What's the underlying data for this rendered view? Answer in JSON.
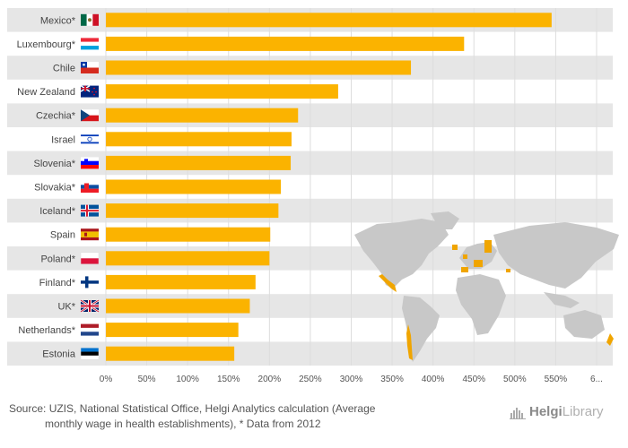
{
  "chart_data": {
    "type": "bar",
    "orientation": "horizontal",
    "categories": [
      "Mexico*",
      "Luxembourg*",
      "Chile",
      "New Zealand",
      "Czechia*",
      "Israel",
      "Slovenia*",
      "Slovakia*",
      "Iceland*",
      "Spain",
      "Poland*",
      "Finland*",
      "UK*",
      "Netherlands*",
      "Estonia"
    ],
    "values": [
      545,
      438,
      373,
      284,
      235,
      227,
      226,
      214,
      211,
      201,
      200,
      183,
      176,
      162,
      157
    ],
    "flags": [
      "flag-mexico",
      "flag-luxembourg",
      "flag-chile",
      "flag-new-zealand",
      "flag-czechia",
      "flag-israel",
      "flag-slovenia",
      "flag-slovakia",
      "flag-iceland",
      "flag-spain",
      "flag-poland",
      "flag-finland",
      "flag-uk",
      "flag-netherlands",
      "flag-estonia"
    ],
    "x_ticks": [
      "0%",
      "50%",
      "100%",
      "150%",
      "200%",
      "250%",
      "300%",
      "350%",
      "400%",
      "450%",
      "500%",
      "550%",
      "6..."
    ],
    "xlim": [
      0,
      600
    ],
    "title": "",
    "xlabel": "",
    "ylabel": "",
    "colors": {
      "bar": "#FBB300",
      "band": "#E6E6E6",
      "gridline": "#DDDDDD",
      "map_land": "#C8C8C8",
      "map_highlight": "#F0A500"
    }
  },
  "footer": {
    "source_line1": "Source: UZIS, National Statistical Office, Helgi Analytics calculation (Average",
    "source_line2": "monthly wage in health establishments), * Data from 2012"
  },
  "logo": {
    "part1": "Helgi",
    "part2": "Library"
  }
}
